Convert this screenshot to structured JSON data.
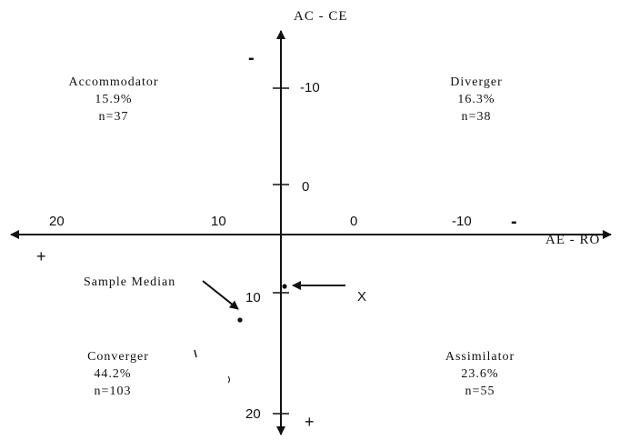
{
  "axes": {
    "y_label": "AC - CE",
    "x_label": "AE - RO",
    "y_ticks": [
      "-10",
      "0",
      "10",
      "20"
    ],
    "x_ticks": [
      "20",
      "10",
      "0",
      "-10"
    ],
    "y_top_sign": "-",
    "y_bottom_sign": "+",
    "x_left_sign": "+",
    "x_right_sign": "-"
  },
  "quadrants": {
    "accommodator": {
      "name": "Accommodator",
      "percent": "15.9%",
      "n": "n=37"
    },
    "diverger": {
      "name": "Diverger",
      "percent": "16.3%",
      "n": "n=38"
    },
    "converger": {
      "name": "Converger",
      "percent": "44.2%",
      "n": "n=103"
    },
    "assimilator": {
      "name": "Assimilator",
      "percent": "23.6%",
      "n": "n=55"
    }
  },
  "annotations": {
    "sample_median": "Sample Median",
    "x_marker": "X"
  },
  "colors": {
    "ink": "#111111",
    "background": "#ffffff"
  }
}
